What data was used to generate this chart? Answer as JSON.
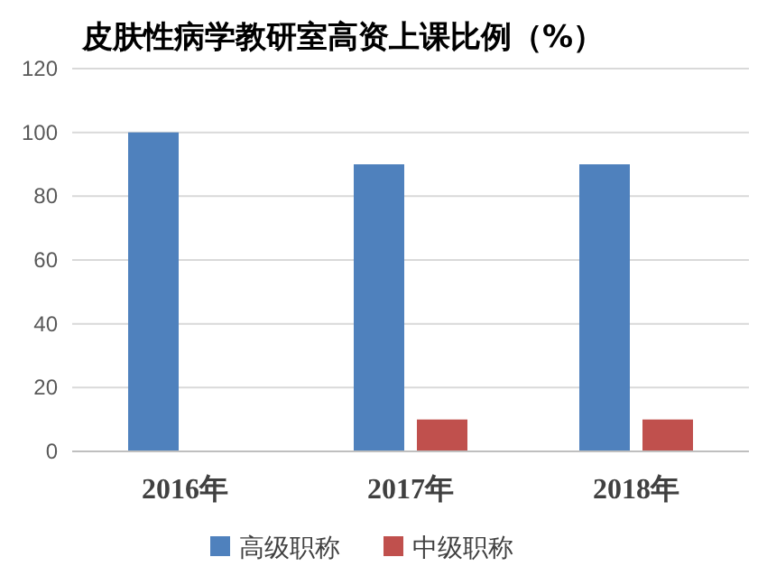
{
  "chart_data": {
    "type": "bar",
    "title": "皮肤性病学教研室高资上课比例（%）",
    "categories": [
      "2016年",
      "2017年",
      "2018年"
    ],
    "series": [
      {
        "name": "高级职称",
        "color": "#4f81bd",
        "values": [
          100,
          90,
          90
        ]
      },
      {
        "name": "中级职称",
        "color": "#c0504d",
        "values": [
          0,
          10,
          10
        ]
      }
    ],
    "ylim": [
      0,
      120
    ],
    "yticks": [
      0,
      20,
      40,
      60,
      80,
      100,
      120
    ],
    "grid": "y",
    "legend": "bottom"
  }
}
